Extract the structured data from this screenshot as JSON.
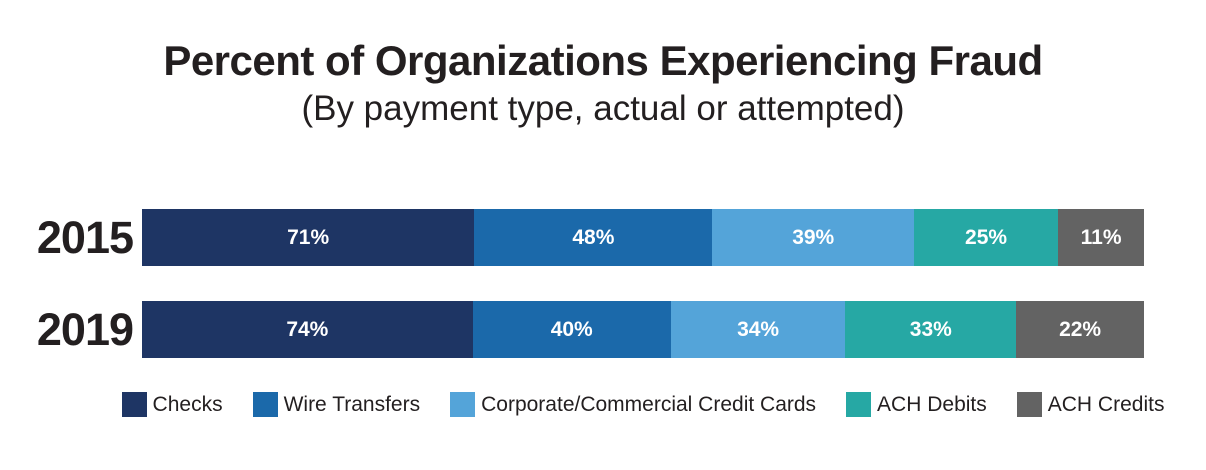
{
  "title": "Percent of Organizations Experiencing Fraud",
  "subtitle": "(By payment type, actual or attempted)",
  "text_color": "#231f20",
  "background_color": "#ffffff",
  "chart_data": {
    "type": "bar",
    "variant": "horizontal-stacked",
    "grid": false,
    "legend_position": "bottom",
    "value_suffix": "%",
    "segment_label_color": "#ffffff",
    "categories": [
      "2015",
      "2019"
    ],
    "series": [
      {
        "name": "Checks",
        "color": "#1e3564",
        "values": [
          71,
          74
        ]
      },
      {
        "name": "Wire Transfers",
        "color": "#1b69aa",
        "values": [
          48,
          40
        ]
      },
      {
        "name": "Corporate/Commercial Credit Cards",
        "color": "#54a4d9",
        "values": [
          39,
          34
        ]
      },
      {
        "name": "ACH Debits",
        "color": "#26a8a4",
        "values": [
          25,
          33
        ]
      },
      {
        "name": "ACH Credits",
        "color": "#636363",
        "values": [
          11,
          22
        ]
      }
    ]
  }
}
